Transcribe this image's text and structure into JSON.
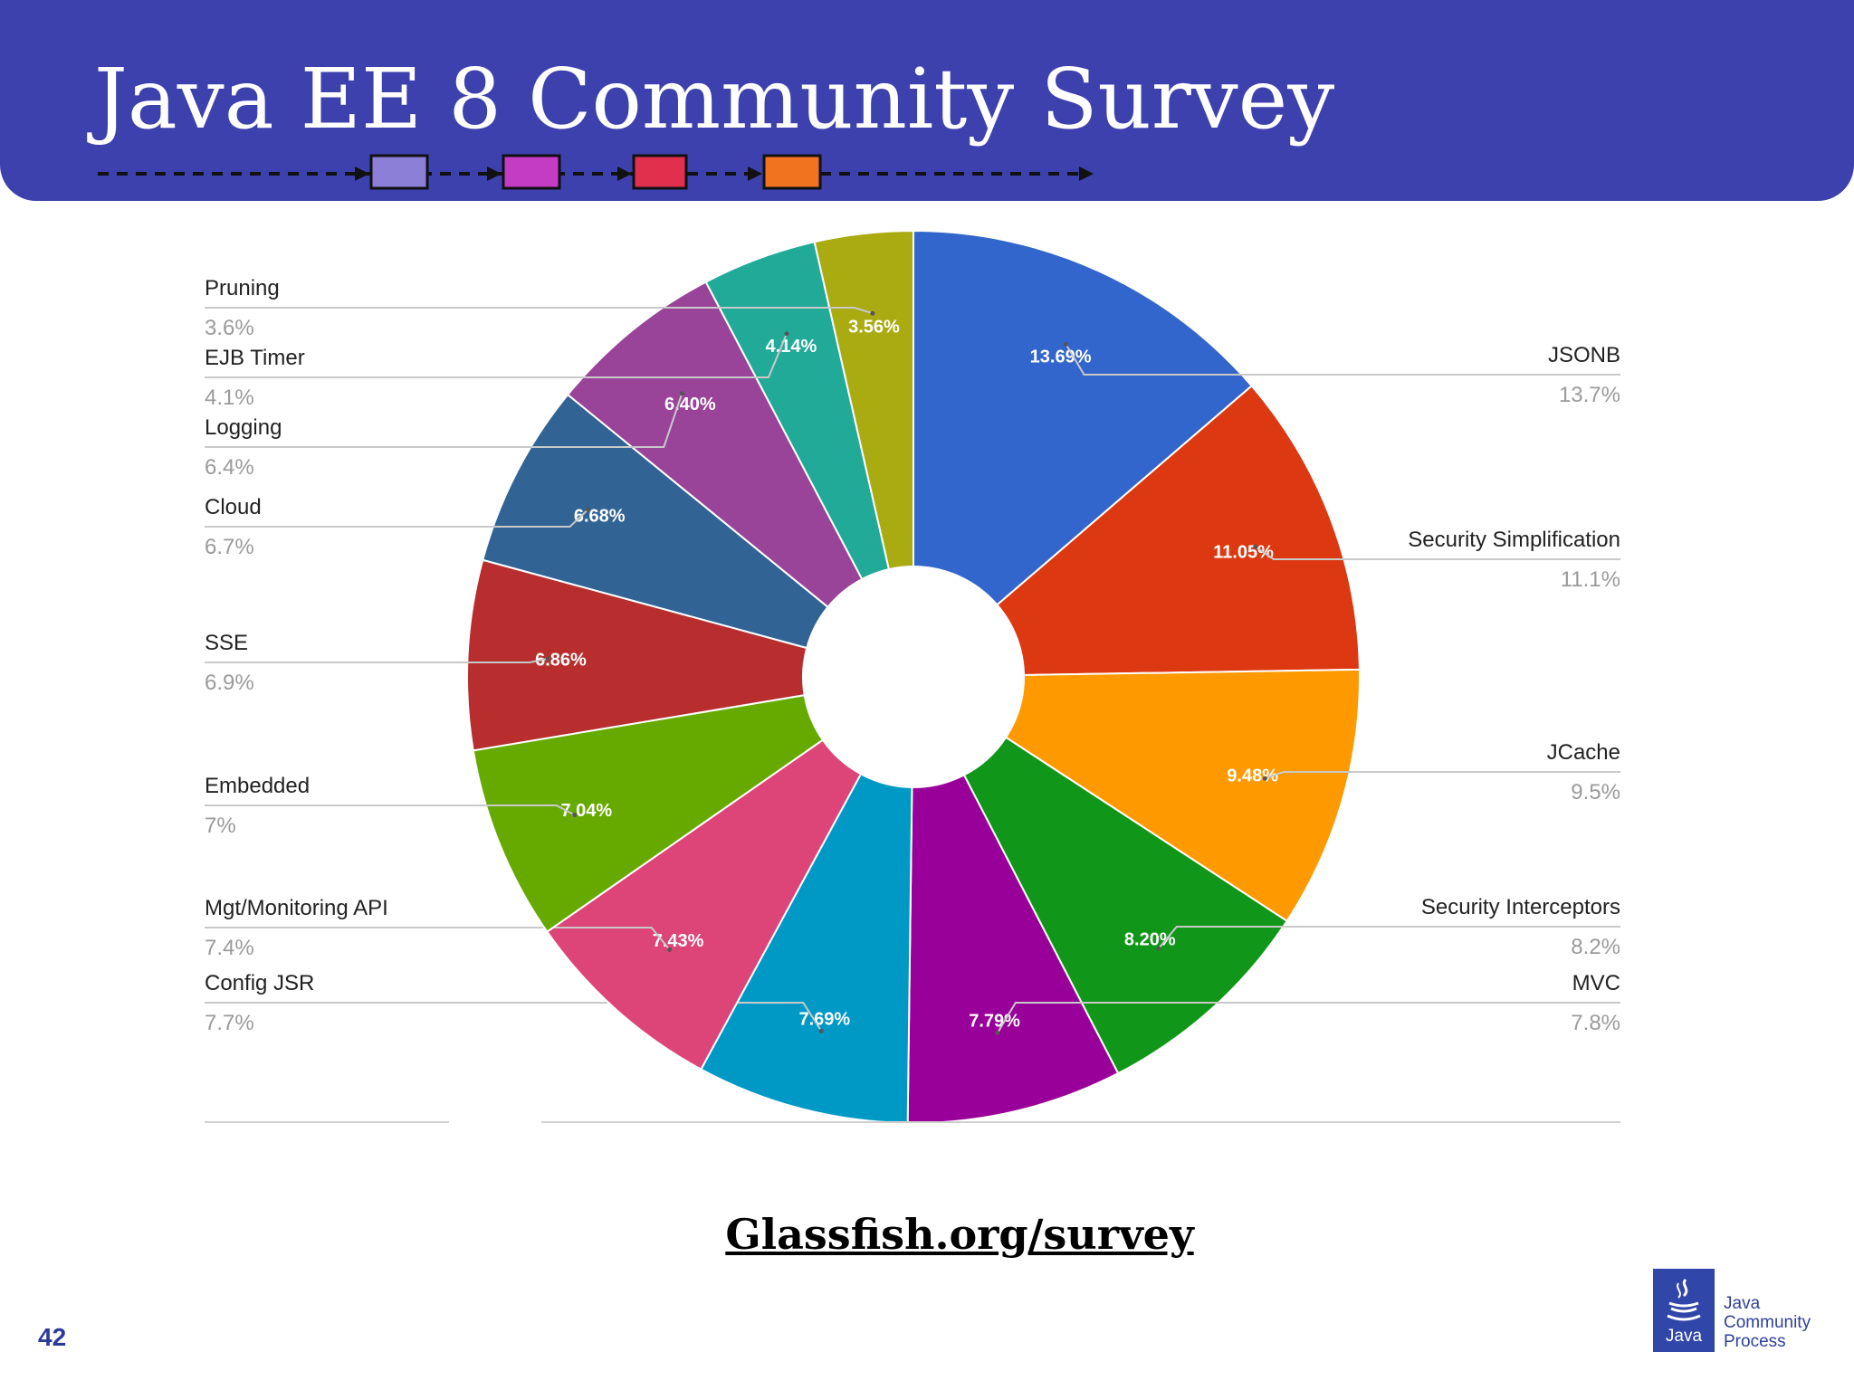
{
  "header": {
    "title": "Java EE 8 Community Survey",
    "background_color": "#3d41ad",
    "timeline_markers": [
      {
        "color": "#8b7fd8"
      },
      {
        "color": "#c43bc4"
      },
      {
        "color": "#e0304e"
      },
      {
        "color": "#f2731f"
      }
    ]
  },
  "chart_data": {
    "type": "pie",
    "donut": true,
    "legend_placement": "callout labels on left and right",
    "slices": [
      {
        "name": "JSONB",
        "value": 13.69,
        "label": "13.69%",
        "legend_value": "13.7%",
        "color": "#3366cc"
      },
      {
        "name": "Security Simplification",
        "value": 11.05,
        "label": "11.05%",
        "legend_value": "11.1%",
        "color": "#dc3912"
      },
      {
        "name": "JCache",
        "value": 9.48,
        "label": "9.48%",
        "legend_value": "9.5%",
        "color": "#ff9900"
      },
      {
        "name": "Security Interceptors",
        "value": 8.2,
        "label": "8.20%",
        "legend_value": "8.2%",
        "color": "#109618"
      },
      {
        "name": "MVC",
        "value": 7.79,
        "label": "7.79%",
        "legend_value": "7.8%",
        "color": "#990099"
      },
      {
        "name": "Config JSR",
        "value": 7.69,
        "label": "7.69%",
        "legend_value": "7.7%",
        "color": "#0099c6"
      },
      {
        "name": "Mgt/Monitoring API",
        "value": 7.43,
        "label": "7.43%",
        "legend_value": "7.4%",
        "color": "#dd4477"
      },
      {
        "name": "Embedded",
        "value": 7.04,
        "label": "7.04%",
        "legend_value": "7%",
        "color": "#66aa00"
      },
      {
        "name": "SSE",
        "value": 6.86,
        "label": "6.86%",
        "legend_value": "6.9%",
        "color": "#b82e2e"
      },
      {
        "name": "Cloud",
        "value": 6.68,
        "label": "6.68%",
        "legend_value": "6.7%",
        "color": "#316395"
      },
      {
        "name": "Logging",
        "value": 6.4,
        "label": "6.40%",
        "legend_value": "6.4%",
        "color": "#994499"
      },
      {
        "name": "EJB Timer",
        "value": 4.14,
        "label": "4.14%",
        "legend_value": "4.1%",
        "color": "#22aa99"
      },
      {
        "name": "Pruning",
        "value": 3.56,
        "label": "3.56%",
        "legend_value": "3.6%",
        "color": "#aaaa11"
      }
    ]
  },
  "footer": {
    "link_text": "Glassfish.org/survey",
    "page_number": "42",
    "logo": {
      "box_text": "Java",
      "line1": "Java",
      "line2": "Community",
      "line3": "Process",
      "icon": "java-coffee-cup-icon"
    }
  }
}
